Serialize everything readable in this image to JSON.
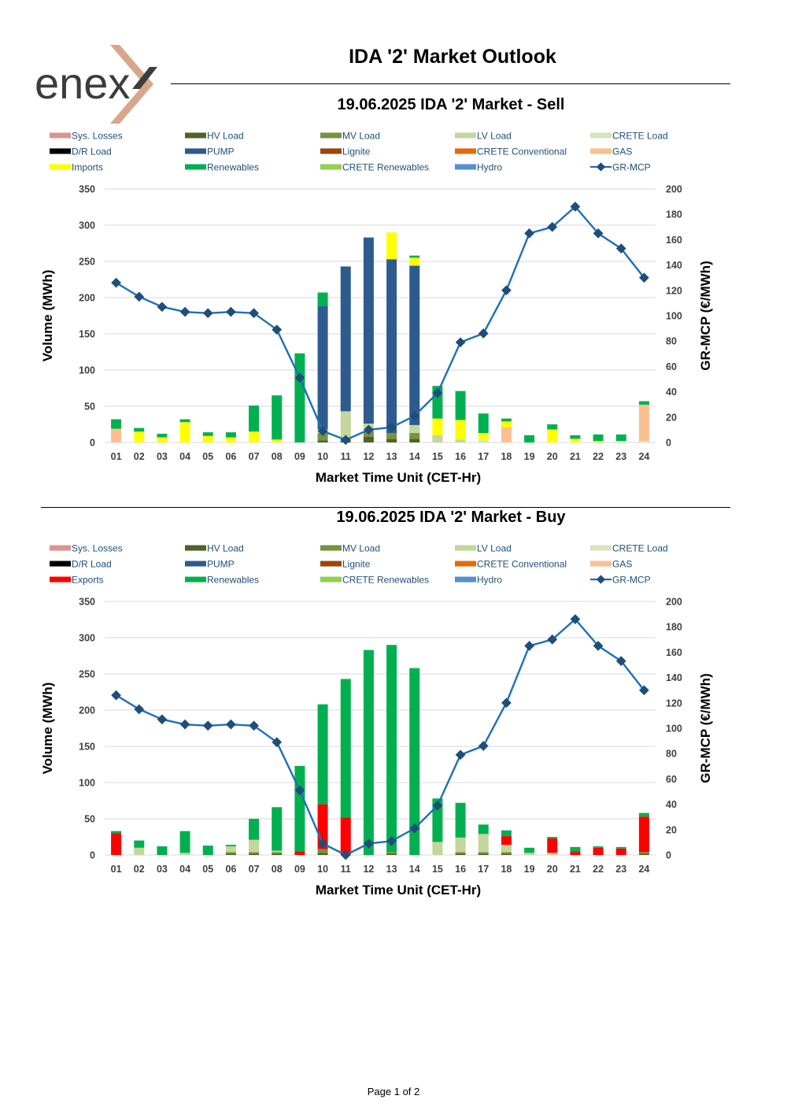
{
  "logo": {
    "text": "enex",
    "accent_color": "#D8A68B",
    "text_color": "#3C3C3C"
  },
  "header": {
    "title": "IDA '2' Market Outlook"
  },
  "footer": {
    "page_label": "Page 1 of 2"
  },
  "colors": {
    "Sys. Losses": "#D99594",
    "HV Load": "#4F6228",
    "MV Load": "#77933C",
    "LV Load": "#C3D69B",
    "CRETE Load": "#D7E4BD",
    "D/R Load": "#000000",
    "PUMP": "#2E5B8E",
    "Lignite": "#984807",
    "CRETE Conventional": "#E36C09",
    "GAS": "#FAC090",
    "Imports": "#FFFF00",
    "Exports": "#FF0000",
    "Renewables": "#00B050",
    "CRETE Renewables": "#92D050",
    "Hydro": "#558ED5",
    "GR-MCP": "#1F6FB8",
    "GR-MCP-marker": "#1F4E79"
  },
  "chart_data": [
    {
      "type": "bar",
      "title": "19.06.2025  IDA '2' Market - Sell",
      "xlabel": "Market Time Unit (CET-Hr)",
      "ylabel": "Volume (MWh)",
      "y2label": "GR-MCP (€/MWh)",
      "ylim": [
        0,
        350
      ],
      "yticks": [
        0,
        50,
        100,
        150,
        200,
        250,
        300,
        350
      ],
      "y2lim": [
        0,
        200
      ],
      "y2ticks": [
        0,
        20,
        40,
        60,
        80,
        100,
        120,
        140,
        160,
        180,
        200
      ],
      "grid": true,
      "legend_position": "top",
      "legend": [
        "Sys. Losses",
        "HV Load",
        "MV Load",
        "LV Load",
        "CRETE Load",
        "D/R Load",
        "PUMP",
        "Lignite",
        "CRETE Conventional",
        "GAS",
        "Imports",
        "Renewables",
        "CRETE Renewables",
        "Hydro",
        "GR-MCP"
      ],
      "categories": [
        "01",
        "02",
        "03",
        "04",
        "05",
        "06",
        "07",
        "08",
        "09",
        "10",
        "11",
        "12",
        "13",
        "14",
        "15",
        "16",
        "17",
        "18",
        "19",
        "20",
        "21",
        "22",
        "23",
        "24"
      ],
      "series": [
        {
          "name": "HV Load",
          "values": [
            0,
            0,
            0,
            0,
            0,
            0,
            0,
            0,
            0,
            3,
            2,
            8,
            5,
            5,
            0,
            0,
            0,
            0,
            0,
            0,
            0,
            0,
            0,
            0
          ]
        },
        {
          "name": "MV Load",
          "values": [
            0,
            0,
            0,
            0,
            0,
            0,
            0,
            0,
            0,
            10,
            3,
            8,
            8,
            8,
            0,
            0,
            0,
            0,
            0,
            0,
            0,
            0,
            0,
            0
          ]
        },
        {
          "name": "LV Load",
          "values": [
            0,
            0,
            0,
            0,
            0,
            0,
            0,
            0,
            0,
            5,
            38,
            10,
            0,
            11,
            10,
            4,
            0,
            0,
            0,
            0,
            0,
            0,
            0,
            0
          ]
        },
        {
          "name": "CRETE Load",
          "values": [
            0,
            0,
            0,
            0,
            0,
            0,
            0,
            0,
            0,
            0,
            0,
            0,
            0,
            0,
            0,
            0,
            3,
            0,
            0,
            0,
            0,
            0,
            2,
            2
          ]
        },
        {
          "name": "PUMP",
          "values": [
            0,
            0,
            0,
            0,
            0,
            0,
            0,
            0,
            0,
            170,
            200,
            257,
            240,
            220,
            0,
            0,
            0,
            0,
            0,
            0,
            0,
            0,
            0,
            0
          ]
        },
        {
          "name": "GAS",
          "values": [
            19,
            0,
            0,
            0,
            0,
            0,
            0,
            0,
            0,
            0,
            0,
            0,
            0,
            0,
            0,
            0,
            0,
            21,
            0,
            0,
            0,
            0,
            0,
            50
          ]
        },
        {
          "name": "Imports",
          "values": [
            0,
            15,
            7,
            28,
            9,
            7,
            15,
            4,
            0,
            0,
            0,
            0,
            37,
            11,
            23,
            27,
            10,
            8,
            0,
            18,
            5,
            2,
            0,
            0
          ]
        },
        {
          "name": "Renewables",
          "values": [
            13,
            5,
            5,
            4,
            5,
            7,
            36,
            61,
            123,
            19,
            0,
            0,
            0,
            3,
            45,
            40,
            27,
            4,
            10,
            7,
            5,
            9,
            9,
            5
          ]
        }
      ],
      "line": {
        "name": "GR-MCP",
        "values": [
          126,
          115,
          107,
          103,
          102,
          103,
          102,
          89,
          51,
          9,
          2,
          10,
          12,
          21,
          39,
          79,
          86,
          120,
          165,
          170,
          186,
          165,
          153,
          130
        ]
      }
    },
    {
      "type": "bar",
      "title": "19.06.2025  IDA '2' Market - Buy",
      "xlabel": "Market Time Unit (CET-Hr)",
      "ylabel": "Volume (MWh)",
      "y2label": "GR-MCP (€/MWh)",
      "ylim": [
        0,
        350
      ],
      "yticks": [
        0,
        50,
        100,
        150,
        200,
        250,
        300,
        350
      ],
      "y2lim": [
        0,
        200
      ],
      "y2ticks": [
        0,
        20,
        40,
        60,
        80,
        100,
        120,
        140,
        160,
        180,
        200
      ],
      "grid": true,
      "legend_position": "top",
      "legend": [
        "Sys. Losses",
        "HV Load",
        "MV Load",
        "LV Load",
        "CRETE Load",
        "D/R Load",
        "PUMP",
        "Lignite",
        "CRETE Conventional",
        "GAS",
        "Exports",
        "Renewables",
        "CRETE Renewables",
        "Hydro",
        "GR-MCP"
      ],
      "categories": [
        "01",
        "02",
        "03",
        "04",
        "05",
        "06",
        "07",
        "08",
        "09",
        "10",
        "11",
        "12",
        "13",
        "14",
        "15",
        "16",
        "17",
        "18",
        "19",
        "20",
        "21",
        "22",
        "23",
        "24"
      ],
      "series": [
        {
          "name": "HV Load",
          "values": [
            0,
            0,
            0,
            0,
            0,
            2,
            2,
            2,
            0,
            3,
            0,
            0,
            2,
            0,
            0,
            2,
            2,
            2,
            0,
            0,
            0,
            0,
            0,
            2
          ]
        },
        {
          "name": "MV Load",
          "values": [
            0,
            0,
            0,
            0,
            0,
            2,
            2,
            2,
            0,
            5,
            0,
            0,
            2,
            0,
            0,
            2,
            2,
            2,
            0,
            0,
            0,
            0,
            0,
            2
          ]
        },
        {
          "name": "LV Load",
          "values": [
            0,
            10,
            0,
            3,
            0,
            8,
            17,
            2,
            0,
            0,
            0,
            0,
            0,
            0,
            18,
            20,
            25,
            10,
            3,
            3,
            0,
            0,
            0,
            0
          ]
        },
        {
          "name": "Exports",
          "values": [
            30,
            0,
            0,
            0,
            0,
            0,
            0,
            0,
            5,
            62,
            52,
            0,
            0,
            0,
            0,
            0,
            0,
            12,
            0,
            20,
            5,
            10,
            9,
            49
          ]
        },
        {
          "name": "Renewables",
          "values": [
            3,
            10,
            12,
            30,
            13,
            2,
            29,
            60,
            118,
            138,
            191,
            283,
            286,
            258,
            60,
            48,
            13,
            8,
            7,
            2,
            6,
            2,
            2,
            5
          ]
        }
      ],
      "line": {
        "name": "GR-MCP",
        "values": [
          126,
          115,
          107,
          103,
          102,
          103,
          102,
          89,
          51,
          9,
          0,
          9,
          11,
          21,
          39,
          79,
          86,
          120,
          165,
          170,
          186,
          165,
          153,
          130
        ]
      }
    }
  ]
}
